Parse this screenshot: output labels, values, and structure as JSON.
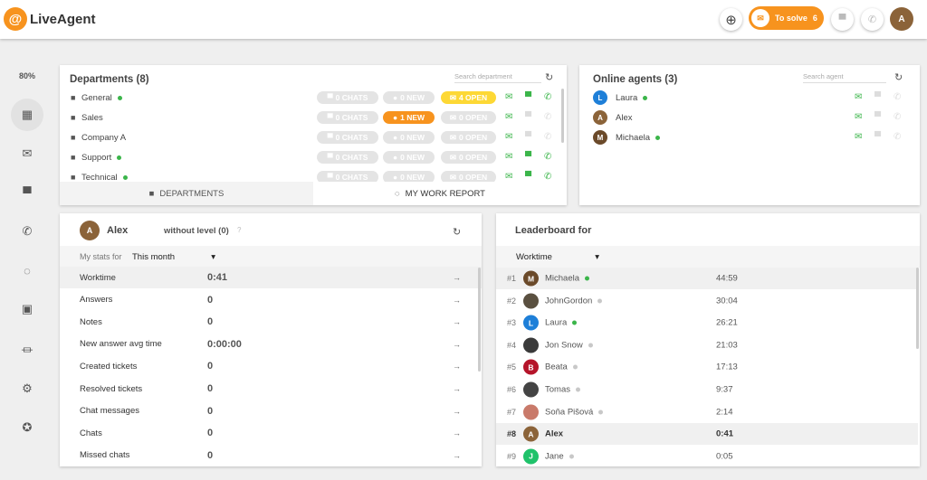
{
  "header": {
    "logo": "LiveAgent",
    "logo_mark": "@",
    "to_solve_label": "To solve",
    "to_solve_count": "6",
    "user_initial": "A",
    "brand_color": "#f7931e"
  },
  "sidebar": {
    "zoom": "80%",
    "items": [
      {
        "icon": "dashboard-icon",
        "glyph": "▦",
        "active": true
      },
      {
        "icon": "envelope-icon",
        "glyph": "✉"
      },
      {
        "icon": "chat-icon",
        "glyph": "▀"
      },
      {
        "icon": "phone-icon",
        "glyph": "✆"
      },
      {
        "icon": "reports-icon",
        "glyph": "◌"
      },
      {
        "icon": "contacts-icon",
        "glyph": "▣"
      },
      {
        "icon": "knowledgebase-icon",
        "glyph": "⏛"
      },
      {
        "icon": "settings-icon",
        "glyph": "⚙"
      },
      {
        "icon": "star-icon",
        "glyph": "✪"
      }
    ]
  },
  "departments": {
    "title": "Departments (8)",
    "search_placeholder": "Search department",
    "rows": [
      {
        "name": "General",
        "online": true,
        "chats": "0 CHATS",
        "new": "0 NEW",
        "open": "4 OPEN",
        "new_active": false,
        "open_active": true,
        "chat": true,
        "phone": true
      },
      {
        "name": "Sales",
        "online": false,
        "chats": "0 CHATS",
        "new": "1 NEW",
        "open": "0 OPEN",
        "new_active": true,
        "open_active": false,
        "chat": false,
        "phone": false
      },
      {
        "name": "Company A",
        "online": false,
        "chats": "0 CHATS",
        "new": "0 NEW",
        "open": "0 OPEN",
        "new_active": false,
        "open_active": false,
        "chat": false,
        "phone": false
      },
      {
        "name": "Support",
        "online": true,
        "chats": "0 CHATS",
        "new": "0 NEW",
        "open": "0 OPEN",
        "new_active": false,
        "open_active": false,
        "chat": true,
        "phone": true
      },
      {
        "name": "Technical",
        "online": true,
        "chats": "0 CHATS",
        "new": "0 NEW",
        "open": "0 OPEN",
        "new_active": false,
        "open_active": false,
        "chat": true,
        "phone": true
      }
    ],
    "tabs": [
      "DEPARTMENTS",
      "MY WORK REPORT"
    ]
  },
  "online_agents": {
    "title": "Online agents (3)",
    "search_placeholder": "Search agent",
    "agents": [
      {
        "name": "Laura",
        "initial": "L",
        "color": "#1e7fd8",
        "online": true
      },
      {
        "name": "Alex",
        "initial": "A",
        "color": "#8b6339",
        "online": false
      },
      {
        "name": "Michaela",
        "initial": "M",
        "color": "#6b4a2a",
        "online": true
      }
    ]
  },
  "stats": {
    "name": "Alex",
    "initial": "A",
    "level": "without level (0)",
    "help": "?",
    "period_label": "My stats for",
    "period": "This month",
    "rows": [
      {
        "label": "Worktime",
        "value": "0:41"
      },
      {
        "label": "Answers",
        "value": "0"
      },
      {
        "label": "Notes",
        "value": "0"
      },
      {
        "label": "New answer avg time",
        "value": "0:00:00"
      },
      {
        "label": "Created tickets",
        "value": "0"
      },
      {
        "label": "Resolved tickets",
        "value": "0"
      },
      {
        "label": "Chat messages",
        "value": "0"
      },
      {
        "label": "Chats",
        "value": "0"
      },
      {
        "label": "Missed chats",
        "value": "0"
      }
    ]
  },
  "leaderboard": {
    "title": "Leaderboard for",
    "metric": "Worktime",
    "rows": [
      {
        "rank": "#1",
        "name": "Michaela",
        "initial": "M",
        "color": "#6b4a2a",
        "online": true,
        "time": "44:59"
      },
      {
        "rank": "#2",
        "name": "JohnGordon",
        "initial": "",
        "color": "#5a5040",
        "online": false,
        "time": "30:04"
      },
      {
        "rank": "#3",
        "name": "Laura",
        "initial": "L",
        "color": "#1e7fd8",
        "online": true,
        "time": "26:21"
      },
      {
        "rank": "#4",
        "name": "Jon Snow",
        "initial": "",
        "color": "#3a3a3a",
        "online": false,
        "time": "21:03"
      },
      {
        "rank": "#5",
        "name": "Beata",
        "initial": "B",
        "color": "#b5142a",
        "online": false,
        "time": "17:13"
      },
      {
        "rank": "#6",
        "name": "Tomas",
        "initial": "",
        "color": "#444",
        "online": false,
        "time": "9:37"
      },
      {
        "rank": "#7",
        "name": "Soňa Pišová",
        "initial": "",
        "color": "#c97a6a",
        "online": false,
        "time": "2:14"
      },
      {
        "rank": "#8",
        "name": "Alex",
        "initial": "A",
        "color": "#8b6339",
        "online": false,
        "time": "0:41",
        "current": true
      },
      {
        "rank": "#9",
        "name": "Jane",
        "initial": "J",
        "color": "#1fc26a",
        "online": false,
        "time": "0:05"
      }
    ]
  }
}
